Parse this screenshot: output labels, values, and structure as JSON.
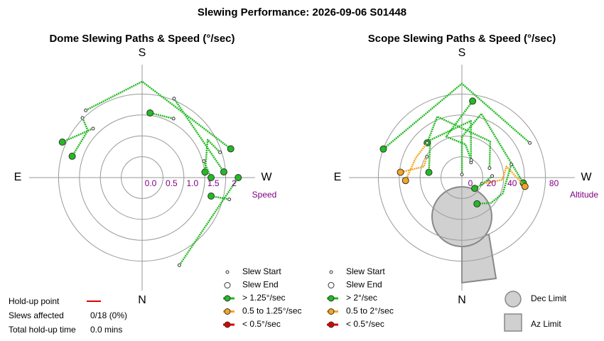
{
  "title": "Slewing Performance: 2026-09-06 S01448",
  "chart_data": [
    {
      "type": "polar",
      "title": "Dome Slewing Paths & Speed (°/sec)",
      "compass": {
        "S": "S",
        "N": "N",
        "E": "E",
        "W": "W"
      },
      "r_label": "Speed",
      "rlim": [
        2.5,
        0
      ],
      "rticks": [
        2,
        1.5,
        {
          "value": 1.0,
          "label": "1.0"
        },
        0.5,
        {
          "value": 0.0,
          "label": "0.0"
        }
      ],
      "legend": [
        {
          "label": "Slew Start"
        },
        {
          "label": "Slew End"
        },
        {
          "label": "> 1.25°/sec",
          "color": "#22bb22"
        },
        {
          "label": "0.5 to 1.25°/sec",
          "color": "#f5a623"
        },
        {
          "label": "< 0.5°/sec",
          "color": "#dd0000"
        }
      ],
      "paths": [
        {
          "color": "#22bb22",
          "az": [
            208,
            187
          ],
          "r": [
            1.6,
            1.56
          ]
        },
        {
          "color": "#22bb22",
          "az": [
            135,
            131,
            107
          ],
          "r": [
            2.02,
            1.72,
            1.75
          ]
        },
        {
          "color": "#22bb22",
          "az": [
            252,
            240,
            265
          ],
          "r": [
            1.96,
            1.81,
            1.51
          ]
        },
        {
          "color": "#22bb22",
          "az": [
            284,
            285
          ],
          "r": [
            2.15,
            1.71
          ]
        },
        {
          "color": "#22bb22",
          "az": [
            140,
            180,
            252
          ],
          "r": [
            2.1,
            2.3,
            2.23
          ]
        },
        {
          "color": "#22bb22",
          "az": [
            135,
            114
          ],
          "r": [
            1.66,
            2.09
          ]
        },
        {
          "color": "#22bb22",
          "az": [
            337,
            270
          ],
          "r": [
            2.28,
            2.3
          ]
        },
        {
          "color": "#22bb22",
          "az": [
            202,
            266
          ],
          "r": [
            2.04,
            1.96
          ]
        },
        {
          "color": "#22bb22",
          "az": [
            255,
            270
          ],
          "r": [
            1.53,
            1.65
          ]
        }
      ]
    },
    {
      "type": "polar",
      "title": "Scope Slewing Paths & Speed (°/sec)",
      "compass": {
        "S": "S",
        "N": "N",
        "E": "E",
        "W": "W"
      },
      "r_label": "Altitude",
      "rlim": [
        100,
        0
      ],
      "rticks": [
        80,
        40,
        20,
        0
      ],
      "rings": [
        80,
        60,
        40,
        20,
        0
      ],
      "legend": [
        {
          "label": "Slew Start"
        },
        {
          "label": "Slew End"
        },
        {
          "label": "> 2°/sec",
          "color": "#22bb22"
        },
        {
          "label": "0.5 to 2°/sec",
          "color": "#f5a623"
        },
        {
          "label": "< 0.5°/sec",
          "color": "#dd0000"
        }
      ],
      "limits_legend": [
        "Dec Limit",
        "Az Limit"
      ],
      "paths": [
        {
          "color": "#22bb22",
          "az": [
            181,
            180,
            197,
            275
          ],
          "r": [
            3,
            39,
            64,
            59
          ]
        },
        {
          "color": "#22bb22",
          "az": [
            211,
            189,
            140,
            99
          ],
          "r": [
            17,
            55,
            47,
            32
          ]
        },
        {
          "color": "#22bb22",
          "az": [
            251,
            218,
            158,
            135
          ],
          "r": [
            28,
            44,
            63,
            47
          ]
        },
        {
          "color": "#f5a623",
          "az": [
            135,
            113,
            87
          ],
          "r": [
            47,
            48,
            54
          ]
        },
        {
          "color": "#f5a623",
          "az": [
            121,
            106,
            95
          ],
          "r": [
            39,
            38,
            59
          ]
        },
        {
          "color": "#f5a623",
          "az": [
            287,
            273,
            256,
            278
          ],
          "r": [
            20,
            39,
            44,
            61
          ]
        },
        {
          "color": "#22bb22",
          "az": [
            255,
            291,
            311,
            330
          ],
          "r": [
            49,
            42,
            37,
            29
          ]
        },
        {
          "color": "#22bb22",
          "az": [
            267,
            290,
            310
          ],
          "r": [
            29,
            20,
            16
          ]
        },
        {
          "color": "#22bb22",
          "az": [
            243,
            180,
            110
          ],
          "r": [
            73,
            90,
            80
          ]
        },
        {
          "color": "#22bb22",
          "az": [
            208,
            186,
            159,
            188
          ],
          "r": [
            19,
            32,
            42,
            74
          ]
        }
      ]
    }
  ],
  "holdup": {
    "point_label": "Hold-up point",
    "affected_label": "Slews affected",
    "affected_value": "0/18 (0%)",
    "time_label": "Total hold-up time",
    "time_value": "0.0 mins"
  }
}
